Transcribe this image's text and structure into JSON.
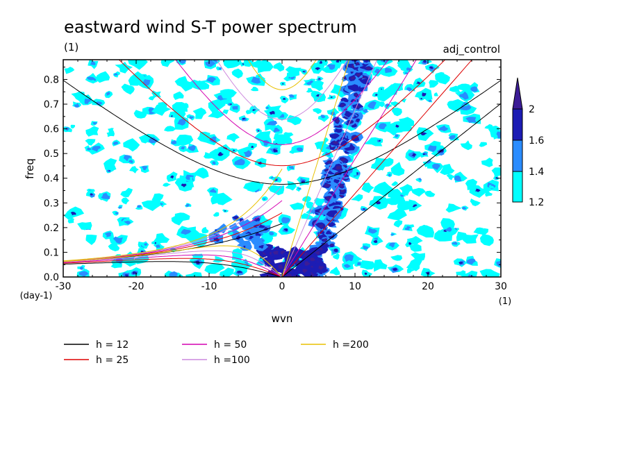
{
  "chart_data": {
    "type": "heatmap",
    "title": "eastward wind S-T power spectrum",
    "title_units": "(1)",
    "experiment": "adj_control",
    "xlabel": "wvn",
    "xlabel_units": "(1)",
    "ylabel": "freq",
    "ylabel_units": "(day-1)",
    "xlim": [
      -30,
      30
    ],
    "ylim": [
      0,
      0.88
    ],
    "x_ticks": [
      -30,
      -20,
      -10,
      0,
      10,
      20,
      30
    ],
    "y_ticks": [
      0.0,
      0.1,
      0.2,
      0.3,
      0.4,
      0.5,
      0.6,
      0.7,
      0.8
    ],
    "shade_levels": [
      1.2,
      1.4,
      1.6,
      2
    ],
    "shade_colors": [
      "#00ffff",
      "#2a8cff",
      "#1c1cb4",
      "#3c1c96"
    ],
    "colorbar_labels": [
      "1.2",
      "1.4",
      "1.6",
      "2"
    ],
    "curves": [
      {
        "name": "h = 12",
        "h": 12,
        "color": "#000000"
      },
      {
        "name": "h = 25",
        "h": 25,
        "color": "#dd0000"
      },
      {
        "name": "h = 50",
        "h": 50,
        "color": "#d400b0"
      },
      {
        "name": "h =100",
        "h": 100,
        "color": "#cc88dd"
      },
      {
        "name": "h =200",
        "h": 200,
        "color": "#e8c000"
      }
    ]
  }
}
